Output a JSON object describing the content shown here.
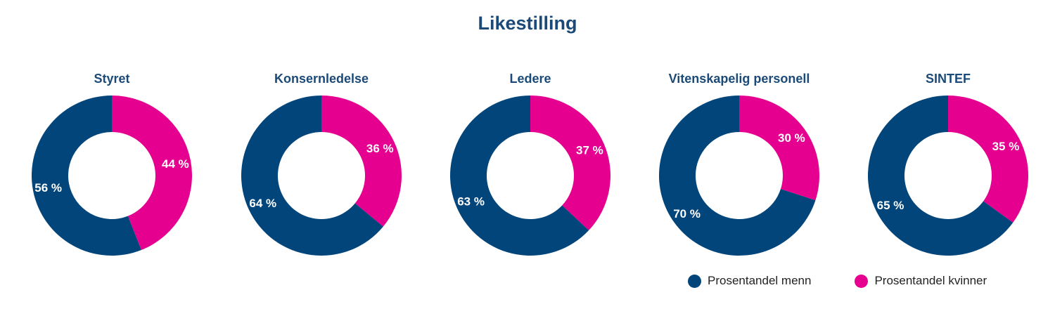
{
  "chart_data": {
    "type": "pie",
    "title": "Likestilling",
    "series_names": [
      "Prosentandel menn",
      "Prosentandel kvinner"
    ],
    "colors": {
      "menn": "#02457a",
      "kvinner": "#e5008f"
    },
    "charts": [
      {
        "title": "Styret",
        "menn": 56,
        "kvinner": 44,
        "menn_label": "56 %",
        "kvinner_label": "44 %"
      },
      {
        "title": "Konsernledelse",
        "menn": 64,
        "kvinner": 36,
        "menn_label": "64 %",
        "kvinner_label": "36 %"
      },
      {
        "title": "Ledere",
        "menn": 63,
        "kvinner": 37,
        "menn_label": "63 %",
        "kvinner_label": "37 %"
      },
      {
        "title": "Vitenskapelig personell",
        "menn": 70,
        "kvinner": 30,
        "menn_label": "70 %",
        "kvinner_label": "30 %"
      },
      {
        "title": "SINTEF",
        "menn": 65,
        "kvinner": 35,
        "menn_label": "65 %",
        "kvinner_label": "35 %"
      }
    ]
  }
}
